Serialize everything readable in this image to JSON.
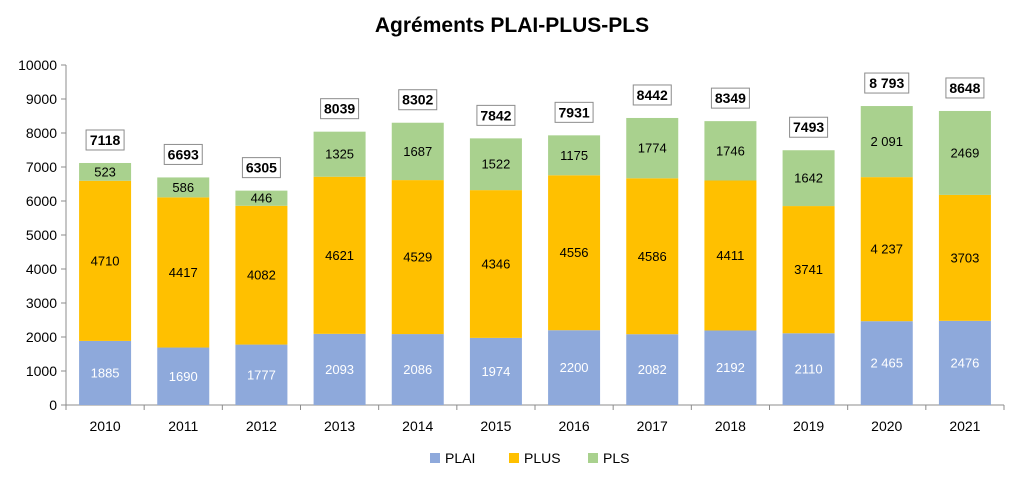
{
  "chart_data": {
    "type": "bar",
    "stacked": true,
    "title": "Agréments PLAI-PLUS-PLS",
    "xlabel": "",
    "ylabel": "",
    "ylim": [
      0,
      10000
    ],
    "yticks": [
      0,
      1000,
      2000,
      3000,
      4000,
      5000,
      6000,
      7000,
      8000,
      9000,
      10000
    ],
    "grid": false,
    "legend_position": "bottom",
    "categories": [
      "2010",
      "2011",
      "2012",
      "2013",
      "2014",
      "2015",
      "2016",
      "2017",
      "2018",
      "2019",
      "2020",
      "2021"
    ],
    "series": [
      {
        "name": "PLAI",
        "color": "#8EA9DB",
        "values": [
          1885,
          1690,
          1777,
          2093,
          2086,
          1974,
          2200,
          2082,
          2192,
          2110,
          2465,
          2476
        ],
        "labels": [
          "1885",
          "1690",
          "1777",
          "2093",
          "2086",
          "1974",
          "2200",
          "2082",
          "2192",
          "2110",
          "2 465",
          "2476"
        ]
      },
      {
        "name": "PLUS",
        "color": "#FFC000",
        "values": [
          4710,
          4417,
          4082,
          4621,
          4529,
          4346,
          4556,
          4586,
          4411,
          3741,
          4237,
          3703
        ],
        "labels": [
          "4710",
          "4417",
          "4082",
          "4621",
          "4529",
          "4346",
          "4556",
          "4586",
          "4411",
          "3741",
          "4 237",
          "3703"
        ]
      },
      {
        "name": "PLS",
        "color": "#A9D18E",
        "values": [
          523,
          586,
          446,
          1325,
          1687,
          1522,
          1175,
          1774,
          1746,
          1642,
          2091,
          2469
        ],
        "labels": [
          "523",
          "586",
          "446",
          "1325",
          "1687",
          "1522",
          "1175",
          "1774",
          "1746",
          "1642",
          "2 091",
          "2469"
        ]
      }
    ],
    "totals": [
      7118,
      6693,
      6305,
      8039,
      8302,
      7842,
      7931,
      8442,
      8349,
      7493,
      8793,
      8648
    ],
    "total_labels": [
      "7118",
      "6693",
      "6305",
      "8039",
      "8302",
      "7842",
      "7931",
      "8442",
      "8349",
      "7493",
      "8 793",
      "8648"
    ]
  }
}
